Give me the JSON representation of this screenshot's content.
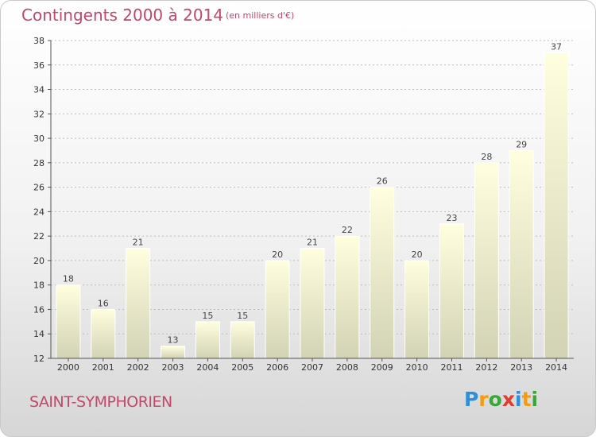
{
  "chart_data": {
    "type": "bar",
    "title": "Contingents 2000 à 2014",
    "subtitle": "(en milliers d'€)",
    "categories": [
      "2000",
      "2001",
      "2002",
      "2003",
      "2004",
      "2005",
      "2006",
      "2007",
      "2008",
      "2009",
      "2010",
      "2011",
      "2012",
      "2013",
      "2014"
    ],
    "values": [
      18,
      16,
      21,
      13,
      15,
      15,
      20,
      21,
      22,
      26,
      20,
      23,
      28,
      29,
      37
    ],
    "ylim": [
      12,
      38
    ],
    "yticks": [
      12,
      14,
      16,
      18,
      20,
      22,
      24,
      26,
      28,
      30,
      32,
      34,
      36,
      38
    ],
    "grid": true,
    "colors": {
      "bar_top": "#ffffe0",
      "bar_bottom": "#d2d2b4",
      "title": "#c2476b"
    }
  },
  "footer": {
    "commune": "SAINT-SYMPHORIEN",
    "brand_letters": [
      {
        "ch": "P",
        "color": "#2f8fd6"
      },
      {
        "ch": "r",
        "color": "#f39c12"
      },
      {
        "ch": "o",
        "color": "#3aa63a"
      },
      {
        "ch": "x",
        "color": "#e23b2f"
      },
      {
        "ch": "i",
        "color": "#2f8fd6"
      },
      {
        "ch": "t",
        "color": "#f39c12"
      },
      {
        "ch": "i",
        "color": "#3aa63a"
      }
    ]
  }
}
